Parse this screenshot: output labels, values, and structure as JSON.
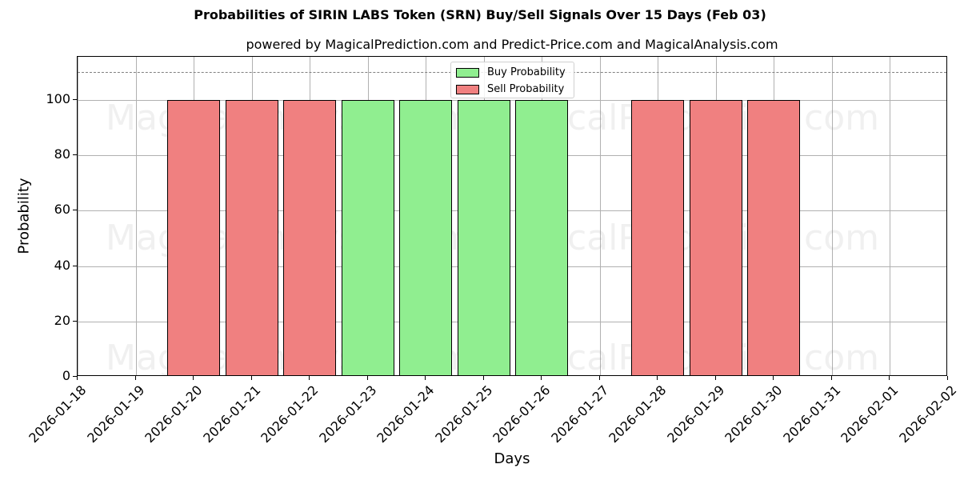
{
  "chart_data": {
    "type": "bar",
    "title": "Probabilities of SIRIN LABS Token (SRN) Buy/Sell Signals Over 15 Days (Feb 03)",
    "subtitle": "powered by MagicalPrediction.com and Predict-Price.com and MagicalAnalysis.com",
    "xlabel": "Days",
    "ylabel": "Probability",
    "ylim": [
      0,
      115.6
    ],
    "yticks": [
      0,
      20,
      40,
      60,
      80,
      100
    ],
    "xticks": [
      "2026-01-18",
      "2026-01-19",
      "2026-01-20",
      "2026-01-21",
      "2026-01-22",
      "2026-01-23",
      "2026-01-24",
      "2026-01-25",
      "2026-01-26",
      "2026-01-27",
      "2026-01-28",
      "2026-01-29",
      "2026-01-30",
      "2026-01-31",
      "2026-02-01",
      "2026-02-02"
    ],
    "reference_line": {
      "y": 110,
      "style": "dashed",
      "color": "#808080"
    },
    "grid": true,
    "legend_position": "upper center",
    "categories": [
      "2026-01-20",
      "2026-01-21",
      "2026-01-22",
      "2026-01-23",
      "2026-01-24",
      "2026-01-25",
      "2026-01-26",
      "2026-01-28",
      "2026-01-29",
      "2026-01-30"
    ],
    "series": [
      {
        "name": "Buy Probability",
        "color": "#90ee90",
        "values": [
          0,
          0,
          0,
          100,
          100,
          100,
          100,
          0,
          0,
          0
        ]
      },
      {
        "name": "Sell Probability",
        "color": "#f08080",
        "values": [
          100,
          100,
          100,
          0,
          0,
          0,
          0,
          100,
          100,
          100
        ]
      }
    ],
    "watermarks": [
      "MagicalAnalysis.com",
      "MagicalPrediction.com"
    ]
  },
  "legend": {
    "buy_label": "Buy Probability",
    "sell_label": "Sell Probability"
  }
}
